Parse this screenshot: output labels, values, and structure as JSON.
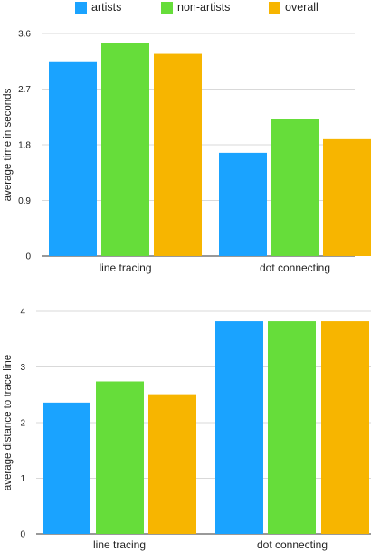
{
  "legend": [
    {
      "name": "artists",
      "color": "#1aa3ff"
    },
    {
      "name": "non-artists",
      "color": "#66dd3a"
    },
    {
      "name": "overall",
      "color": "#f7b500"
    }
  ],
  "chart_data": [
    {
      "type": "bar",
      "title": "",
      "xlabel": "",
      "ylabel": "average time in seconds",
      "categories": [
        "line tracing",
        "dot connecting"
      ],
      "ylim": [
        0,
        3.6
      ],
      "yticks": [
        "0",
        "0.9",
        "1.8",
        "2.7",
        "3.6"
      ],
      "grid": true,
      "legend_position": "top",
      "series": [
        {
          "name": "artists",
          "values": [
            3.15,
            1.67
          ]
        },
        {
          "name": "non-artists",
          "values": [
            3.44,
            2.22
          ]
        },
        {
          "name": "overall",
          "values": [
            3.27,
            1.89
          ]
        }
      ]
    },
    {
      "type": "bar",
      "title": "",
      "xlabel": "",
      "ylabel": "average distance to trace line",
      "categories": [
        "line tracing",
        "dot connecting"
      ],
      "ylim": [
        0,
        4
      ],
      "yticks": [
        "0",
        "1",
        "2",
        "3",
        "4"
      ],
      "grid": true,
      "series": [
        {
          "name": "artists",
          "values": [
            2.36,
            3.82
          ]
        },
        {
          "name": "non-artists",
          "values": [
            2.74,
            3.82
          ]
        },
        {
          "name": "overall",
          "values": [
            2.51,
            3.82
          ]
        }
      ]
    }
  ]
}
